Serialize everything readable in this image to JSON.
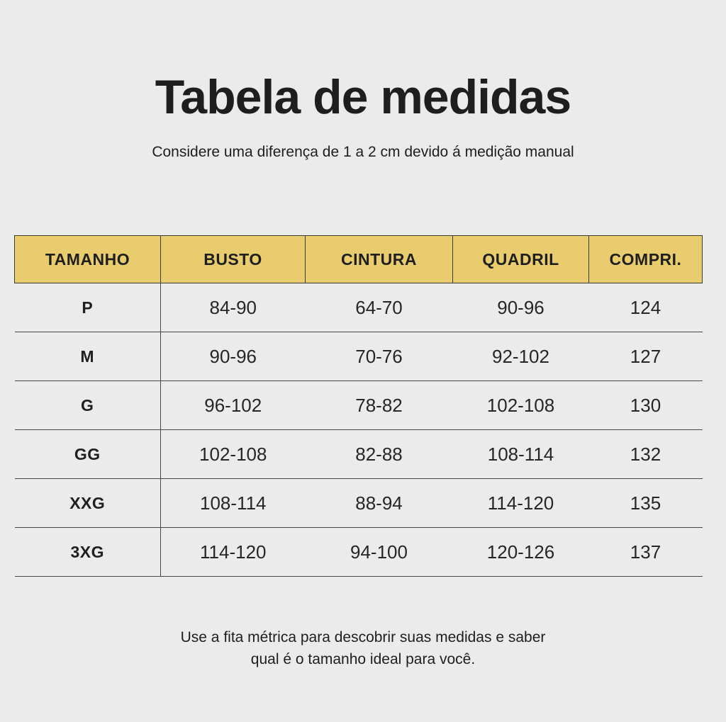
{
  "page": {
    "title": "Tabela de medidas",
    "subtitle": "Considere uma diferença de 1 a 2 cm devido á medição manual",
    "footer": {
      "line1": "Use a fita métrica para descobrir suas medidas e saber",
      "line2": "qual é o tamanho ideal para você."
    }
  },
  "colors": {
    "background": "#ebebeb",
    "header_background": "#e9cc6d",
    "text": "#1e1e1e",
    "line": "#474747"
  },
  "chart_data": {
    "type": "table",
    "title": "Tabela de medidas",
    "columns": [
      "TAMANHO",
      "BUSTO",
      "CINTURA",
      "QUADRIL",
      "COMPRI."
    ],
    "rows": [
      [
        "P",
        "84-90",
        "64-70",
        "90-96",
        "124"
      ],
      [
        "M",
        "90-96",
        "70-76",
        "92-102",
        "127"
      ],
      [
        "G",
        "96-102",
        "78-82",
        "102-108",
        "130"
      ],
      [
        "GG",
        "102-108",
        "82-88",
        "108-114",
        "132"
      ],
      [
        "XXG",
        "108-114",
        "88-94",
        "114-120",
        "135"
      ],
      [
        "3XG",
        "114-120",
        "94-100",
        "120-126",
        "137"
      ]
    ]
  }
}
